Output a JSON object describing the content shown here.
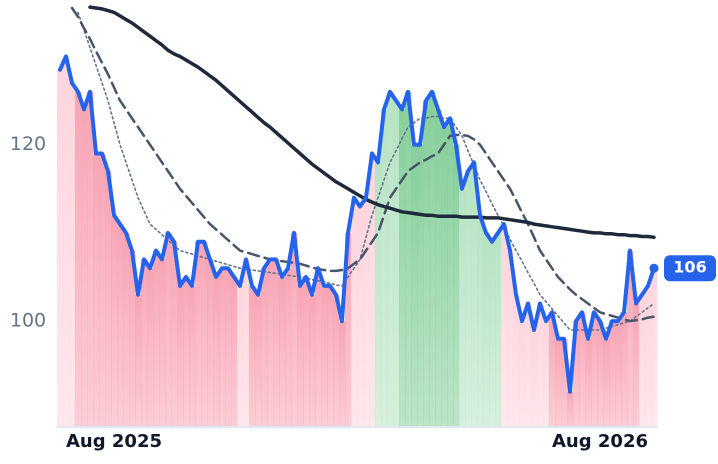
{
  "chart_data": {
    "type": "line",
    "categories": [
      null,
      null,
      null,
      null,
      null,
      null,
      null,
      null,
      null,
      "Aug 2025",
      null,
      null,
      null,
      null,
      null,
      null,
      null,
      null,
      null,
      null,
      null,
      null,
      null,
      null,
      null,
      null,
      null,
      null,
      null,
      null,
      null,
      null,
      null,
      null,
      null,
      null,
      null,
      null,
      null,
      null,
      null,
      null,
      null,
      null,
      null,
      null,
      null,
      null,
      null,
      null,
      null,
      null,
      null,
      null,
      null,
      null,
      null,
      null,
      null,
      null,
      null,
      null,
      null,
      null,
      null,
      null,
      null,
      null,
      null,
      null,
      null,
      null,
      null,
      null,
      null,
      null,
      null,
      null,
      null,
      null,
      null,
      null,
      null,
      null,
      null,
      null,
      null,
      null,
      null,
      null,
      "Aug 2026",
      null,
      null,
      null,
      null,
      null,
      null,
      null,
      null,
      null
    ],
    "series": [
      {
        "color": "#2563eb",
        "style": "solid",
        "width": 4,
        "values": [
          128.5,
          130,
          127,
          126,
          124,
          126,
          119,
          119,
          117,
          112,
          111,
          110,
          108,
          103,
          107,
          106,
          108,
          107,
          110,
          109,
          104,
          105,
          104,
          109,
          109,
          107,
          105,
          106,
          106,
          105,
          104,
          107,
          104,
          103,
          106,
          107,
          107,
          105,
          106,
          110,
          104,
          105,
          103,
          106,
          104,
          104,
          103,
          100,
          110,
          114,
          113,
          114,
          119,
          118,
          124,
          126,
          125,
          124,
          126,
          120,
          120,
          125,
          126,
          124,
          122,
          123,
          120,
          115,
          117,
          118,
          112,
          110,
          109,
          110,
          111,
          108,
          103,
          100,
          102,
          99,
          102,
          100,
          101,
          98,
          98,
          92,
          100,
          101,
          98,
          101,
          100,
          98,
          100,
          100,
          101,
          108,
          102,
          103,
          104,
          106
        ]
      },
      {
        "color": "#1e293b",
        "style": "solid",
        "width": 3.5,
        "values": [
          null,
          null,
          null,
          null,
          null,
          135.6,
          135.5,
          135.4,
          135.2,
          135.0,
          134.6,
          134.2,
          133.8,
          133.3,
          132.8,
          132.3,
          131.8,
          131.3,
          130.7,
          130.3,
          130.0,
          129.6,
          129.2,
          128.8,
          128.3,
          127.8,
          127.3,
          126.7,
          126.1,
          125.5,
          124.9,
          124.3,
          123.7,
          123.1,
          122.5,
          122.0,
          121.4,
          120.8,
          120.2,
          119.6,
          119.0,
          118.4,
          117.8,
          117.3,
          116.8,
          116.3,
          115.8,
          115.4,
          115.0,
          114.6,
          114.2,
          113.8,
          113.5,
          113.2,
          113.0,
          112.8,
          112.6,
          112.4,
          112.3,
          112.2,
          112.1,
          112.0,
          112.0,
          111.9,
          111.9,
          111.9,
          111.9,
          111.8,
          111.8,
          111.8,
          111.8,
          111.7,
          111.7,
          111.7,
          111.6,
          111.5,
          111.4,
          111.3,
          111.2,
          111.0,
          110.9,
          110.8,
          110.7,
          110.6,
          110.5,
          110.4,
          110.3,
          110.2,
          110.1,
          110.0,
          110.0,
          109.9,
          109.9,
          109.8,
          109.8,
          109.7,
          109.7,
          109.6,
          109.6,
          109.5
        ]
      },
      {
        "color": "#475569",
        "style": "dashed",
        "width": 2.5,
        "values": [
          null,
          null,
          135.5,
          134.5,
          133.2,
          132,
          130.6,
          129.3,
          128,
          126.5,
          125,
          124,
          123,
          122,
          121,
          120,
          119,
          118,
          117,
          116,
          115,
          114.2,
          113.4,
          112.6,
          111.8,
          111,
          110.4,
          109.8,
          109.2,
          108.6,
          108,
          107.8,
          107.6,
          107.4,
          107.2,
          107,
          106.9,
          106.8,
          106.7,
          106.6,
          106.5,
          106.3,
          106.1,
          105.9,
          105.8,
          105.7,
          105.7,
          105.8,
          106,
          106.5,
          107,
          108,
          109,
          110,
          112,
          114,
          115,
          116,
          117,
          117.5,
          118,
          118.3,
          118.7,
          119,
          120,
          121,
          121.1,
          121.1,
          121,
          120.6,
          120,
          119,
          118,
          117,
          116,
          115,
          113.7,
          112.3,
          111,
          109.5,
          108,
          107,
          106,
          105,
          104.3,
          103.6,
          103,
          102.5,
          102,
          101.5,
          101,
          100.8,
          100.6,
          100.4,
          100.2,
          100,
          100.1,
          100.2,
          100.4,
          100.5
        ]
      },
      {
        "color": "#64748b",
        "style": "dotted",
        "width": 1.6,
        "values": [
          null,
          null,
          null,
          135,
          133,
          131,
          129,
          127,
          125,
          122.5,
          120,
          118,
          116,
          114,
          112.5,
          111,
          110.4,
          109.8,
          109.2,
          108.6,
          108,
          107.8,
          107.6,
          107.4,
          107.2,
          107,
          106.8,
          106.6,
          106.4,
          106.2,
          106,
          105.9,
          105.8,
          105.7,
          105.6,
          105.5,
          105.4,
          105.3,
          105.2,
          105.1,
          105,
          104.9,
          104.7,
          104.6,
          104.4,
          104.3,
          104.1,
          104,
          105,
          106,
          107,
          109.5,
          112,
          114,
          116,
          118,
          119.3,
          120.7,
          122,
          122.5,
          123,
          123,
          123.2,
          123.2,
          123,
          123,
          122,
          121,
          119.3,
          117.7,
          116,
          114.7,
          113.3,
          112,
          110.7,
          109.3,
          108,
          106.8,
          105.5,
          104.3,
          103,
          102.2,
          101.4,
          100.6,
          99.8,
          99,
          99,
          99,
          99,
          99,
          99,
          99.2,
          99.4,
          99.6,
          99.8,
          100,
          100.5,
          101,
          101.5,
          102
        ]
      }
    ],
    "bar_colors": [
      "#fdd5dd",
      "#fdd5dd",
      "#fdd5dd",
      "#f8a5b5",
      "#f8a5b5",
      "#f8a5b5",
      "#f8a5b5",
      "#f8a5b5",
      "#f8a5b5",
      "#f8a5b5",
      "#f8a5b5",
      "#f8a5b5",
      "#f8a5b5",
      "#f8a5b5",
      "#f8a5b5",
      "#f8a5b5",
      "#f8a5b5",
      "#f8a5b5",
      "#f8a5b5",
      "#f8a5b5",
      "#f8a5b5",
      "#f8a5b5",
      "#f8a5b5",
      "#f8a5b5",
      "#f8a5b5",
      "#f8a5b5",
      "#f8a5b5",
      "#f8a5b5",
      "#f8a5b5",
      "#f8a5b5",
      "#fdd5dd",
      "#fdd5dd",
      "#f8a5b5",
      "#f8a5b5",
      "#f8a5b5",
      "#f8a5b5",
      "#f8a5b5",
      "#f8a5b5",
      "#f8a5b5",
      "#f8a5b5",
      "#f8a5b5",
      "#f8a5b5",
      "#f8a5b5",
      "#f8a5b5",
      "#f8a5b5",
      "#f8a5b5",
      "#f8a5b5",
      "#f8a5b5",
      "#f8a5b5",
      "#fdd5dd",
      "#fdd5dd",
      "#fdd5dd",
      "#fdd5dd",
      "#b6e3c3",
      "#b6e3c3",
      "#b6e3c3",
      "#b6e3c3",
      "#86cf9b",
      "#86cf9b",
      "#86cf9b",
      "#86cf9b",
      "#86cf9b",
      "#86cf9b",
      "#86cf9b",
      "#86cf9b",
      "#86cf9b",
      "#86cf9b",
      "#b6e3c3",
      "#b6e3c3",
      "#b6e3c3",
      "#b6e3c3",
      "#b6e3c3",
      "#b6e3c3",
      "#b6e3c3",
      "#fdd5dd",
      "#fdd5dd",
      "#fdd5dd",
      "#fdd5dd",
      "#fdd5dd",
      "#fdd5dd",
      "#fdd5dd",
      "#fdd5dd",
      "#f8a5b5",
      "#f8a5b5",
      "#f8a5b5",
      "#f8a5b5",
      "#f8a5b5",
      "#f8a5b5",
      "#f8a5b5",
      "#f8a5b5",
      "#f8a5b5",
      "#f8a5b5",
      "#f8a5b5",
      "#f8a5b5",
      "#f8a5b5",
      "#f8a5b5",
      "#f8a5b5",
      "#fdd5dd",
      "#fdd5dd",
      "#fdd5dd"
    ],
    "ylim": [
      88,
      135.5
    ],
    "yticks": [
      100,
      120
    ],
    "grid": false
  }
}
